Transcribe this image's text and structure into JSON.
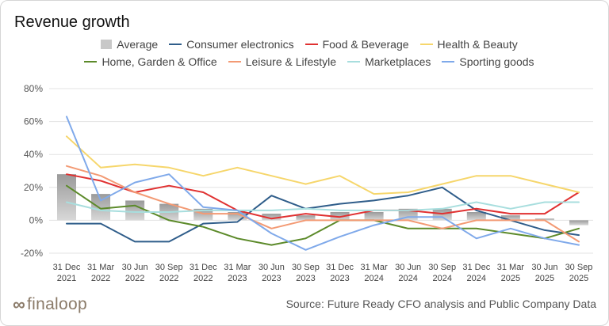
{
  "header": {
    "title": "Revenue growth"
  },
  "footer": {
    "logo_text": "finaloop",
    "source": "Source: Future Ready CFO analysis and Public Company Data"
  },
  "colors": {
    "average": "#c8c8c8",
    "Consumer electronics": "#2f5d8a",
    "Food & Beverage": "#e03131",
    "Health & Beauty": "#f6d66b",
    "Home, Garden & Office": "#5c8a2a",
    "Leisure & Lifestyle": "#f39a74",
    "Marketplaces": "#a8dede",
    "Sporting goods": "#7fa9ea"
  },
  "chart_data": {
    "type": "line",
    "title": "Revenue growth",
    "xlabel": "",
    "ylabel": "",
    "ylim": [
      -20,
      80
    ],
    "yticks": [
      "80%",
      "60%",
      "40%",
      "20%",
      "0%",
      "-20%"
    ],
    "ytick_values": [
      80,
      60,
      40,
      20,
      0,
      -20
    ],
    "grid": true,
    "categories": [
      [
        "31 Dec",
        "2021"
      ],
      [
        "31 Mar",
        "2022"
      ],
      [
        "30 Jun",
        "2022"
      ],
      [
        "30 Sep",
        "2022"
      ],
      [
        "31 Dec",
        "2022"
      ],
      [
        "31 Mar",
        "2023"
      ],
      [
        "30 Jun",
        "2023"
      ],
      [
        "30 Sep",
        "2023"
      ],
      [
        "31 Dec",
        "2023"
      ],
      [
        "31 Mar",
        "2024"
      ],
      [
        "30 Jun",
        "2024"
      ],
      [
        "30 Sep",
        "2024"
      ],
      [
        "31 Dec",
        "2024"
      ],
      [
        "31 Mar",
        "2025"
      ],
      [
        "30 Jun",
        "2025"
      ],
      [
        "30 Sep",
        "2025"
      ]
    ],
    "bar_series": {
      "name": "Average",
      "values": [
        28,
        16,
        12,
        10,
        7,
        5,
        4,
        3,
        5,
        5,
        7,
        7,
        5,
        3,
        1,
        -3
      ]
    },
    "series": [
      {
        "name": "Consumer electronics",
        "values": [
          -2,
          -2,
          -13,
          -13,
          -2,
          -1,
          15,
          7,
          10,
          12,
          15,
          20,
          6,
          0,
          -6,
          -9
        ]
      },
      {
        "name": "Food & Beverage",
        "values": [
          28,
          24,
          17,
          21,
          17,
          6,
          1,
          4,
          2,
          6,
          6,
          4,
          7,
          4,
          4,
          17
        ]
      },
      {
        "name": "Health & Beauty",
        "values": [
          51,
          32,
          34,
          32,
          27,
          32,
          27,
          22,
          27,
          16,
          17,
          22,
          27,
          27,
          22,
          17
        ]
      },
      {
        "name": "Home, Garden & Office",
        "values": [
          21,
          7,
          9,
          0,
          -4,
          -11,
          -15,
          -11,
          0,
          0,
          -5,
          -5,
          -5,
          -8,
          -11,
          -5
        ]
      },
      {
        "name": "Leisure & Lifestyle",
        "values": [
          33,
          27,
          17,
          10,
          4,
          4,
          -5,
          0,
          0,
          0,
          0,
          -5,
          0,
          0,
          0,
          -13
        ]
      },
      {
        "name": "Marketplaces",
        "values": [
          11,
          6,
          5,
          5,
          6,
          6,
          6,
          7,
          6,
          6,
          6,
          7,
          11,
          7,
          11,
          11
        ]
      },
      {
        "name": "Sporting goods",
        "values": [
          63,
          12,
          23,
          28,
          8,
          6,
          -8,
          -18,
          -10,
          -3,
          2,
          2,
          -11,
          -5,
          -11,
          -15
        ]
      }
    ]
  }
}
